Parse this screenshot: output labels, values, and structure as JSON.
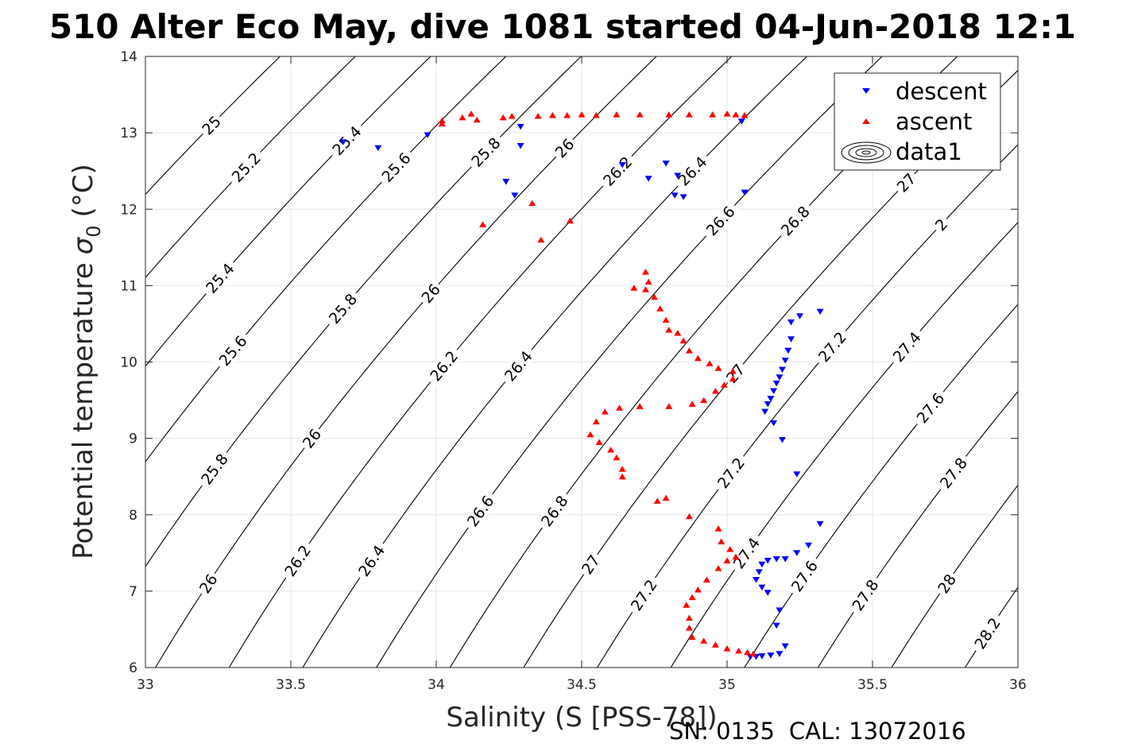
{
  "chart_data": {
    "type": "scatter",
    "title": "510 Alter Eco May, dive 1081 started 04-Jun-2018 12:1",
    "xlabel": "Salinity (S [PSS-78])",
    "ylabel": "Potential temperature",
    "ylabel_sub": "0",
    "ylabel_sigma": "σ",
    "ylabel_unit": "(°C)",
    "xlim": [
      33,
      36
    ],
    "ylim": [
      6,
      14
    ],
    "xticks": [
      "33",
      "33.5",
      "34",
      "34.5",
      "35",
      "35.5",
      "36"
    ],
    "yticks": [
      "6",
      "7",
      "8",
      "9",
      "10",
      "11",
      "12",
      "13",
      "14"
    ],
    "grid": true,
    "legend_position": "top-right",
    "legend": [
      "descent",
      "ascent",
      "data1"
    ],
    "series": [
      {
        "name": "descent",
        "color": "#0000ff",
        "marker": "triangle-down",
        "points": [
          [
            33.68,
            12.88
          ],
          [
            33.8,
            12.8
          ],
          [
            33.97,
            12.97
          ],
          [
            34.29,
            13.08
          ],
          [
            34.29,
            12.83
          ],
          [
            34.24,
            12.36
          ],
          [
            34.27,
            12.18
          ],
          [
            34.64,
            12.58
          ],
          [
            34.73,
            12.4
          ],
          [
            34.79,
            12.6
          ],
          [
            34.82,
            12.18
          ],
          [
            34.83,
            12.44
          ],
          [
            34.85,
            12.16
          ],
          [
            35.05,
            13.15
          ],
          [
            35.06,
            12.22
          ],
          [
            35.22,
            10.52
          ],
          [
            35.25,
            10.6
          ],
          [
            35.32,
            10.66
          ],
          [
            35.22,
            10.3
          ],
          [
            35.21,
            10.15
          ],
          [
            35.2,
            10.02
          ],
          [
            35.19,
            9.9
          ],
          [
            35.18,
            9.8
          ],
          [
            35.17,
            9.72
          ],
          [
            35.16,
            9.62
          ],
          [
            35.15,
            9.52
          ],
          [
            35.14,
            9.45
          ],
          [
            35.13,
            9.35
          ],
          [
            35.16,
            9.2
          ],
          [
            35.19,
            8.98
          ],
          [
            35.24,
            8.53
          ],
          [
            35.32,
            7.88
          ],
          [
            35.28,
            7.6
          ],
          [
            35.24,
            7.5
          ],
          [
            35.2,
            7.42
          ],
          [
            35.17,
            7.42
          ],
          [
            35.14,
            7.4
          ],
          [
            35.12,
            7.35
          ],
          [
            35.11,
            7.25
          ],
          [
            35.1,
            7.15
          ],
          [
            35.12,
            7.05
          ],
          [
            35.14,
            6.98
          ],
          [
            35.18,
            6.75
          ],
          [
            35.17,
            6.55
          ],
          [
            35.2,
            6.28
          ],
          [
            35.18,
            6.18
          ],
          [
            35.15,
            6.16
          ],
          [
            35.12,
            6.15
          ],
          [
            35.1,
            6.14
          ],
          [
            35.08,
            6.14
          ]
        ]
      },
      {
        "name": "ascent",
        "color": "#ff0000",
        "marker": "triangle-up",
        "points": [
          [
            34.02,
            13.12
          ],
          [
            34.02,
            13.16
          ],
          [
            34.09,
            13.2
          ],
          [
            34.12,
            13.25
          ],
          [
            34.14,
            13.17
          ],
          [
            34.23,
            13.2
          ],
          [
            34.26,
            13.22
          ],
          [
            34.35,
            13.22
          ],
          [
            34.4,
            13.23
          ],
          [
            34.45,
            13.23
          ],
          [
            34.5,
            13.24
          ],
          [
            34.55,
            13.23
          ],
          [
            34.62,
            13.24
          ],
          [
            34.7,
            13.24
          ],
          [
            34.8,
            13.24
          ],
          [
            34.87,
            13.24
          ],
          [
            34.95,
            13.24
          ],
          [
            35.0,
            13.25
          ],
          [
            35.03,
            13.24
          ],
          [
            35.06,
            13.23
          ],
          [
            34.16,
            11.8
          ],
          [
            34.33,
            12.08
          ],
          [
            34.36,
            11.6
          ],
          [
            34.46,
            11.85
          ],
          [
            34.72,
            11.18
          ],
          [
            34.73,
            11.05
          ],
          [
            34.68,
            10.97
          ],
          [
            34.72,
            10.95
          ],
          [
            34.75,
            10.85
          ],
          [
            34.77,
            10.7
          ],
          [
            34.79,
            10.55
          ],
          [
            34.8,
            10.42
          ],
          [
            34.83,
            10.38
          ],
          [
            34.85,
            10.28
          ],
          [
            34.87,
            10.15
          ],
          [
            34.9,
            10.05
          ],
          [
            34.94,
            9.98
          ],
          [
            34.97,
            9.92
          ],
          [
            35.02,
            9.88
          ],
          [
            35.02,
            9.78
          ],
          [
            34.99,
            9.7
          ],
          [
            34.96,
            9.62
          ],
          [
            34.92,
            9.5
          ],
          [
            34.88,
            9.45
          ],
          [
            34.8,
            9.42
          ],
          [
            34.7,
            9.42
          ],
          [
            34.63,
            9.4
          ],
          [
            34.58,
            9.35
          ],
          [
            34.55,
            9.22
          ],
          [
            34.53,
            9.05
          ],
          [
            34.56,
            8.95
          ],
          [
            34.6,
            8.85
          ],
          [
            34.62,
            8.75
          ],
          [
            34.64,
            8.6
          ],
          [
            34.64,
            8.5
          ],
          [
            34.76,
            8.18
          ],
          [
            34.79,
            8.22
          ],
          [
            34.87,
            7.98
          ],
          [
            34.97,
            7.82
          ],
          [
            34.98,
            7.65
          ],
          [
            35.01,
            7.55
          ],
          [
            35.03,
            7.45
          ],
          [
            35.0,
            7.4
          ],
          [
            34.97,
            7.3
          ],
          [
            34.93,
            7.15
          ],
          [
            34.9,
            7.02
          ],
          [
            34.88,
            6.92
          ],
          [
            34.86,
            6.82
          ],
          [
            34.87,
            6.65
          ],
          [
            34.87,
            6.52
          ],
          [
            34.88,
            6.4
          ],
          [
            34.92,
            6.35
          ],
          [
            34.96,
            6.3
          ],
          [
            35.0,
            6.25
          ],
          [
            35.04,
            6.22
          ],
          [
            35.07,
            6.2
          ],
          [
            35.09,
            6.18
          ]
        ]
      }
    ],
    "contours": [
      {
        "value": 25.0,
        "labels": [
          "25"
        ]
      },
      {
        "value": 25.2,
        "labels": [
          "25.2"
        ]
      },
      {
        "value": 25.4,
        "labels": [
          "25.4",
          "25.4"
        ]
      },
      {
        "value": 25.6,
        "labels": [
          "25.6",
          "25.6"
        ]
      },
      {
        "value": 25.8,
        "labels": [
          "25.8",
          "25.8",
          "25.8"
        ]
      },
      {
        "value": 26.0,
        "labels": [
          "26",
          "26",
          "26",
          "26"
        ]
      },
      {
        "value": 26.2,
        "labels": [
          "26.2",
          "26.2",
          "26.2"
        ]
      },
      {
        "value": 26.4,
        "labels": [
          "26.4",
          "26.4",
          "26.4"
        ]
      },
      {
        "value": 26.6,
        "labels": [
          "26.6",
          "26.6"
        ]
      },
      {
        "value": 26.8,
        "labels": [
          "26.8",
          "26.8"
        ]
      },
      {
        "value": 27.0,
        "labels": [
          "27",
          "27",
          "27"
        ]
      },
      {
        "value": 27.2,
        "labels": [
          "27.2",
          "27.2",
          "27.2",
          "2"
        ]
      },
      {
        "value": 27.4,
        "labels": [
          "27.4",
          "27.4"
        ]
      },
      {
        "value": 27.6,
        "labels": [
          "27.6",
          "27.6"
        ]
      },
      {
        "value": 27.8,
        "labels": [
          "27.8",
          "27.8"
        ]
      },
      {
        "value": 28.0,
        "labels": [
          "28"
        ]
      },
      {
        "value": 28.2,
        "labels": [
          "28.2"
        ]
      }
    ]
  },
  "footer": {
    "serial": "SN: 0135",
    "calibration": "CAL: 13072016"
  }
}
